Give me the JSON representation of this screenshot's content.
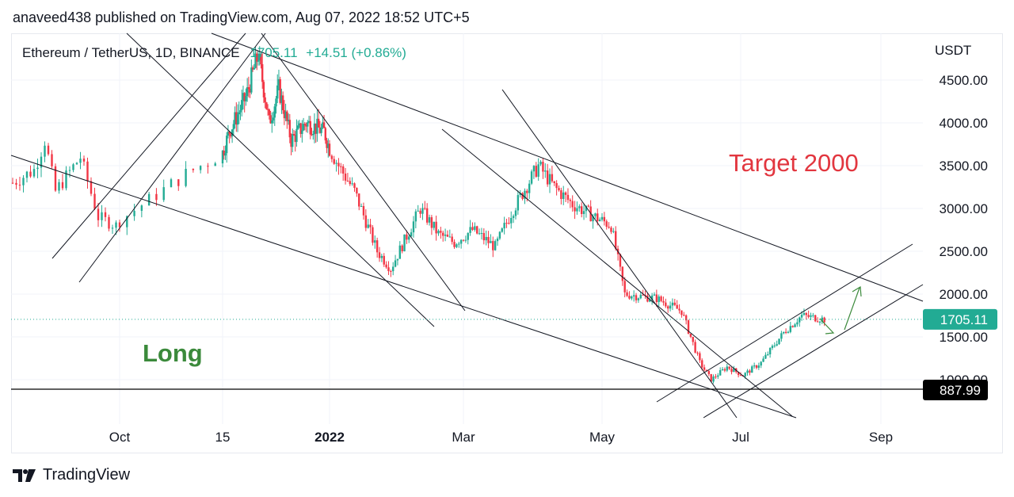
{
  "header": {
    "published_text": "anaveed438 published on TradingView.com, Aug 07, 2022 18:52 UTC+5"
  },
  "legend": {
    "symbol": "Ethereum / TetherUS, 1D, BINANCE",
    "price": "1705.11",
    "change": "+14.51 (+0.86%)"
  },
  "axis": {
    "currency": "USDT",
    "price_ticks": [
      "4500.00",
      "4000.00",
      "3500.00",
      "3000.00",
      "2500.00",
      "2000.00",
      "1500.00",
      "1000.00"
    ],
    "time_ticks": [
      "Oct",
      "15",
      "2022",
      "Mar",
      "May",
      "Jul",
      "Sep"
    ],
    "last_price_label": "1705.11",
    "support_label": "887.99"
  },
  "annotations": {
    "target": "Target 2000",
    "long": "Long"
  },
  "footer": {
    "brand": "TradingView"
  },
  "colors": {
    "up": "#22ab94",
    "down": "#f23645",
    "target_text": "#e2363f",
    "long_text": "#3b8a3b",
    "line": "#131722"
  },
  "chart_data": {
    "type": "candlestick",
    "symbol": "Ethereum / TetherUS",
    "interval": "1D",
    "exchange": "BINANCE",
    "ylim": [
      700,
      5000
    ],
    "ticks_y": [
      1000,
      1500,
      2000,
      2500,
      3000,
      3500,
      4000,
      4500
    ],
    "x_ticks": [
      "Oct",
      "15",
      "2022",
      "Mar",
      "May",
      "Jul",
      "Sep"
    ],
    "last_price": 1705.11,
    "support_level": 887.99,
    "target_level": 2000,
    "path": [
      {
        "date": "2021-09-01",
        "price": 3300
      },
      {
        "date": "2021-09-07",
        "price": 3450
      },
      {
        "date": "2021-09-10",
        "price": 3800
      },
      {
        "date": "2021-09-13",
        "price": 3200
      },
      {
        "date": "2021-09-20",
        "price": 3600
      },
      {
        "date": "2021-09-25",
        "price": 2900
      },
      {
        "date": "2021-09-30",
        "price": 2800
      },
      {
        "date": "2021-10-10",
        "price": 3400
      },
      {
        "date": "2021-10-20",
        "price": 3900
      },
      {
        "date": "2021-11-01",
        "price": 4300
      },
      {
        "date": "2021-11-10",
        "price": 4800
      },
      {
        "date": "2021-11-18",
        "price": 4000
      },
      {
        "date": "2021-11-25",
        "price": 4400
      },
      {
        "date": "2021-12-04",
        "price": 3800
      },
      {
        "date": "2021-12-15",
        "price": 4000
      },
      {
        "date": "2021-12-28",
        "price": 3900
      },
      {
        "date": "2022-01-05",
        "price": 3500
      },
      {
        "date": "2022-01-12",
        "price": 3200
      },
      {
        "date": "2022-01-22",
        "price": 2500
      },
      {
        "date": "2022-01-28",
        "price": 2300
      },
      {
        "date": "2022-02-10",
        "price": 3000
      },
      {
        "date": "2022-02-18",
        "price": 2700
      },
      {
        "date": "2022-02-25",
        "price": 2600
      },
      {
        "date": "2022-03-05",
        "price": 2750
      },
      {
        "date": "2022-03-15",
        "price": 2550
      },
      {
        "date": "2022-03-22",
        "price": 2950
      },
      {
        "date": "2022-04-03",
        "price": 3500
      },
      {
        "date": "2022-04-10",
        "price": 3250
      },
      {
        "date": "2022-04-18",
        "price": 3050
      },
      {
        "date": "2022-04-28",
        "price": 2900
      },
      {
        "date": "2022-05-05",
        "price": 2800
      },
      {
        "date": "2022-05-11",
        "price": 2000
      },
      {
        "date": "2022-05-25",
        "price": 1950
      },
      {
        "date": "2022-06-05",
        "price": 1800
      },
      {
        "date": "2022-06-13",
        "price": 1200
      },
      {
        "date": "2022-06-18",
        "price": 1000
      },
      {
        "date": "2022-06-25",
        "price": 1150
      },
      {
        "date": "2022-07-02",
        "price": 1050
      },
      {
        "date": "2022-07-10",
        "price": 1200
      },
      {
        "date": "2022-07-20",
        "price": 1550
      },
      {
        "date": "2022-07-28",
        "price": 1750
      },
      {
        "date": "2022-08-07",
        "price": 1705
      }
    ]
  }
}
